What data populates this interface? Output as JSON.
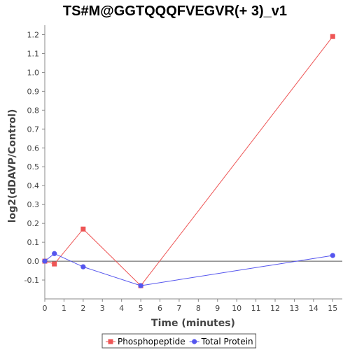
{
  "chart_data": {
    "type": "line",
    "title": "TS#M@GGTQQQFVEGVR(+ 3)_v1",
    "xlabel": "Time (minutes)",
    "ylabel": "log2(dDAVP/Control)",
    "xlim": [
      0,
      15.5
    ],
    "ylim": [
      -0.2,
      1.25
    ],
    "x_ticks": [
      0,
      1,
      2,
      3,
      4,
      5,
      6,
      7,
      8,
      9,
      10,
      11,
      12,
      13,
      14,
      15
    ],
    "y_ticks": [
      -0.1,
      0.0,
      0.1,
      0.2,
      0.3,
      0.4,
      0.5,
      0.6,
      0.7,
      0.8,
      0.9,
      1.0,
      1.1,
      1.2
    ],
    "grid": false,
    "zero_line": true,
    "legend_position": "bottom",
    "series": [
      {
        "name": "Phosphopeptide",
        "color": "#ee5555",
        "marker": "square",
        "x": [
          0,
          0.5,
          2,
          5,
          15
        ],
        "y": [
          0.0,
          -0.015,
          0.17,
          -0.13,
          1.19
        ]
      },
      {
        "name": "Total Protein",
        "color": "#5555ee",
        "marker": "circle",
        "x": [
          0,
          0.5,
          2,
          5,
          15
        ],
        "y": [
          0.0,
          0.04,
          -0.03,
          -0.13,
          0.03
        ]
      }
    ]
  }
}
